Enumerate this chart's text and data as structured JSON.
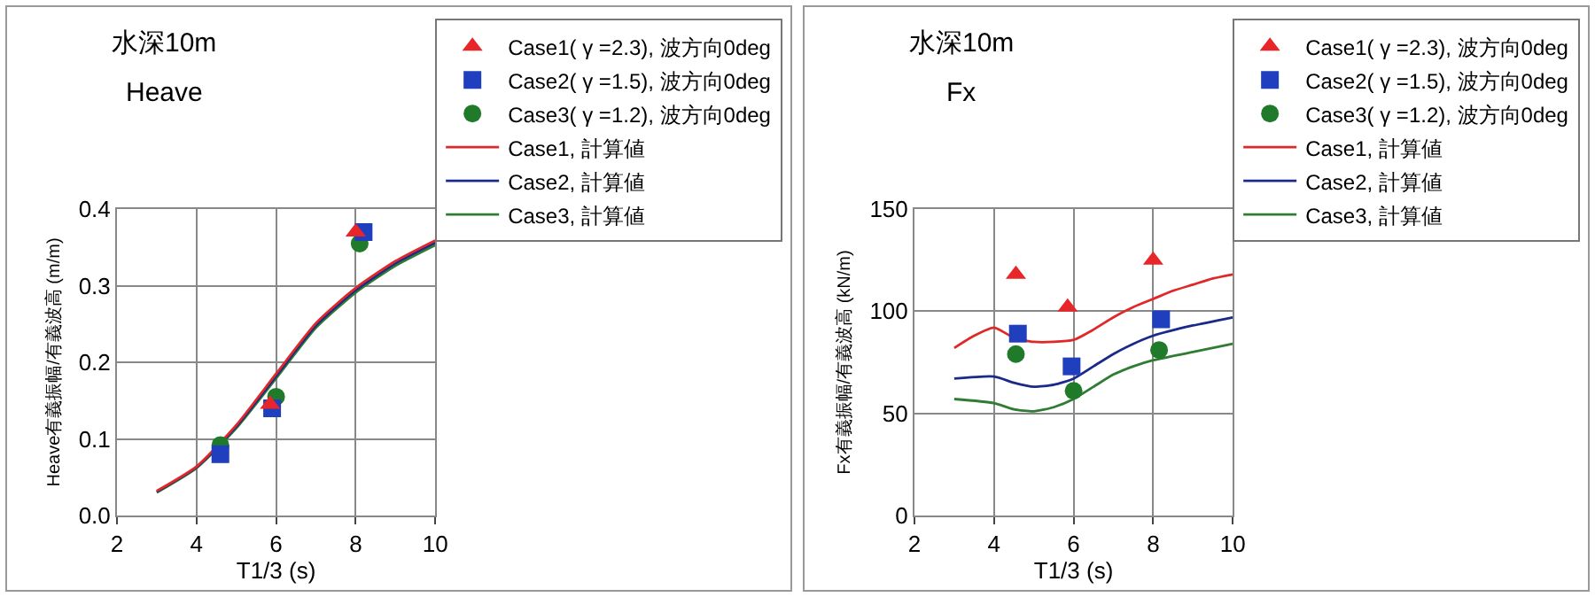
{
  "chart_data": [
    {
      "type": "scatter",
      "title": "水深10m",
      "subtitle": "Heave",
      "xlabel": "T1/3 (s)",
      "ylabel": "Heave有義振幅/有義波高 (m/m)",
      "xlim": [
        2,
        10
      ],
      "xticks": [
        2,
        4,
        6,
        8,
        10
      ],
      "ylim": [
        0,
        0.4
      ],
      "yticks": [
        {
          "value": 0,
          "label": "0.0"
        },
        0.1,
        0.2,
        0.3,
        0.4
      ],
      "grid": true,
      "legend": "top right",
      "series": [
        {
          "name": "Case1( γ =2.3), 波方向0deg",
          "type": "scatter",
          "marker": "triangle",
          "color": "#e8262a",
          "x": [
            5.85,
            8.0
          ],
          "values": [
            0.145,
            0.37
          ]
        },
        {
          "name": "Case2( γ =1.5), 波方向0deg",
          "type": "scatter",
          "marker": "square",
          "color": "#1f3fbf",
          "x": [
            4.6,
            5.9,
            8.2
          ],
          "values": [
            0.08,
            0.14,
            0.37
          ]
        },
        {
          "name": "Case3( γ =1.2), 波方向0deg",
          "type": "scatter",
          "marker": "circle",
          "color": "#1f7a2a",
          "x": [
            4.6,
            6.0,
            8.1
          ],
          "values": [
            0.092,
            0.155,
            0.355
          ]
        },
        {
          "name": "Case1, 計算値",
          "type": "line",
          "color": "#e02828",
          "x": [
            3,
            4,
            5,
            6,
            7,
            8,
            9,
            10
          ],
          "values": [
            0.032,
            0.064,
            0.118,
            0.185,
            0.251,
            0.297,
            0.332,
            0.359
          ]
        },
        {
          "name": "Case2, 計算値",
          "type": "line",
          "color": "#1a2a8a",
          "x": [
            3,
            4,
            5,
            6,
            7,
            8,
            9,
            10
          ],
          "values": [
            0.031,
            0.063,
            0.116,
            0.182,
            0.248,
            0.294,
            0.329,
            0.356
          ]
        },
        {
          "name": "Case3, 計算値",
          "type": "line",
          "color": "#2e7d32",
          "x": [
            3,
            4,
            5,
            6,
            7,
            8,
            9,
            10
          ],
          "values": [
            0.03,
            0.062,
            0.114,
            0.179,
            0.245,
            0.291,
            0.326,
            0.353
          ]
        }
      ]
    },
    {
      "type": "scatter",
      "title": "水深10m",
      "subtitle": "Fx",
      "xlabel": "T1/3 (s)",
      "ylabel": "Fx有義振幅/有義波高 (kN/m)",
      "xlim": [
        2,
        10
      ],
      "xticks": [
        2,
        4,
        6,
        8,
        10
      ],
      "ylim": [
        0,
        150
      ],
      "yticks": [
        0,
        50,
        100,
        150
      ],
      "grid": true,
      "legend": "top right",
      "series": [
        {
          "name": "Case1( γ =2.3), 波方向0deg",
          "type": "scatter",
          "marker": "triangle",
          "color": "#e8262a",
          "x": [
            4.55,
            5.85,
            8.0
          ],
          "values": [
            118,
            102,
            125
          ]
        },
        {
          "name": "Case2( γ =1.5), 波方向0deg",
          "type": "scatter",
          "marker": "square",
          "color": "#1f3fbf",
          "x": [
            4.6,
            5.95,
            8.2
          ],
          "values": [
            89,
            73,
            96
          ]
        },
        {
          "name": "Case3( γ =1.2), 波方向0deg",
          "type": "scatter",
          "marker": "circle",
          "color": "#1f7a2a",
          "x": [
            4.55,
            6.0,
            8.15
          ],
          "values": [
            79,
            61,
            81
          ]
        },
        {
          "name": "Case1, 計算値",
          "type": "line",
          "color": "#e02828",
          "x": [
            3,
            3.5,
            4,
            4.5,
            5,
            5.5,
            6,
            6.5,
            7,
            7.5,
            8,
            8.5,
            9,
            9.5,
            10
          ],
          "values": [
            82,
            88,
            92,
            87,
            85,
            85,
            86,
            91,
            97,
            102,
            106,
            110,
            113,
            116,
            118
          ]
        },
        {
          "name": "Case2, 計算値",
          "type": "line",
          "color": "#1a2a8a",
          "x": [
            3,
            4,
            4.5,
            5,
            5.5,
            6,
            6.5,
            7,
            7.5,
            8,
            9,
            10
          ],
          "values": [
            67,
            68,
            65,
            63,
            64,
            67,
            73,
            79,
            84,
            88,
            93,
            97
          ]
        },
        {
          "name": "Case3, 計算値",
          "type": "line",
          "color": "#2e7d32",
          "x": [
            3,
            4,
            4.5,
            5,
            5.5,
            6,
            6.5,
            7,
            7.5,
            8,
            9,
            10
          ],
          "values": [
            57,
            55,
            52,
            51,
            53,
            57,
            63,
            69,
            73,
            76,
            80,
            84
          ]
        }
      ]
    }
  ]
}
